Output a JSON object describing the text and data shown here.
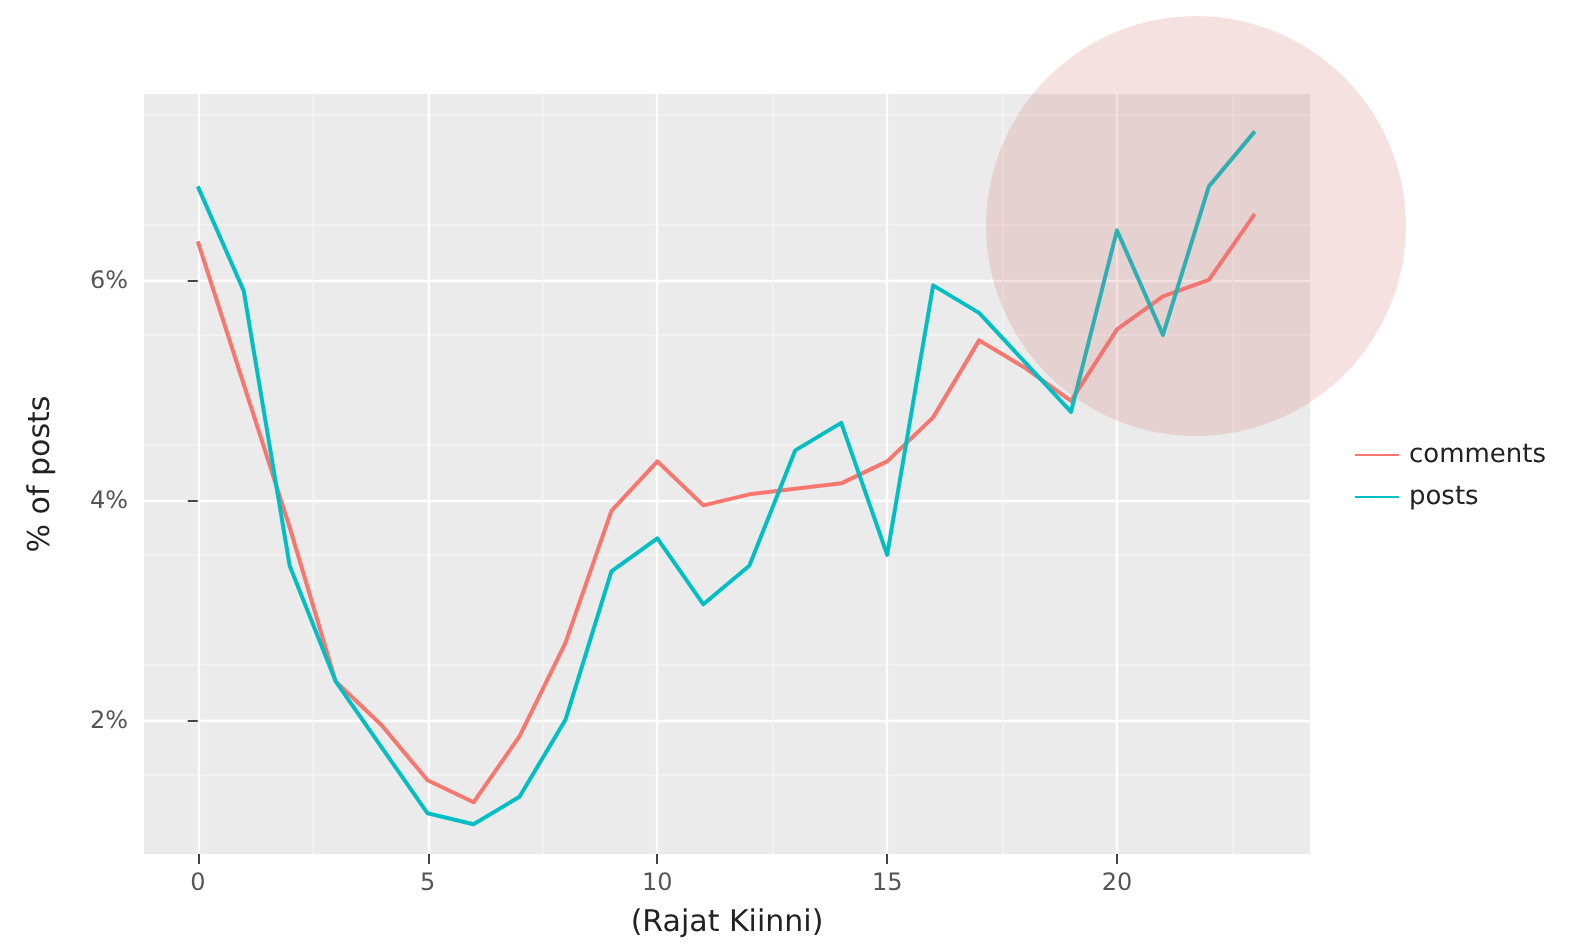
{
  "chart_data": {
    "type": "line",
    "xlabel": "(Rajat Kiinni)",
    "ylabel": "% of posts",
    "x": [
      0,
      1,
      2,
      3,
      4,
      5,
      6,
      7,
      8,
      9,
      10,
      11,
      12,
      13,
      14,
      15,
      16,
      17,
      18,
      19,
      20,
      21,
      22,
      23
    ],
    "series": [
      {
        "name": "comments",
        "color": "#f8766d",
        "values": [
          6.35,
          5.05,
          3.75,
          2.35,
          1.95,
          1.45,
          1.25,
          1.85,
          2.7,
          3.9,
          4.35,
          3.95,
          4.05,
          4.1,
          4.15,
          4.35,
          4.75,
          5.45,
          5.2,
          4.9,
          5.55,
          5.85,
          6.0,
          6.6
        ]
      },
      {
        "name": "posts",
        "color": "#00bfc4",
        "values": [
          6.85,
          5.9,
          3.4,
          2.35,
          1.75,
          1.15,
          1.05,
          1.3,
          2.0,
          3.35,
          3.65,
          3.05,
          3.4,
          4.45,
          4.7,
          3.5,
          5.95,
          5.7,
          5.25,
          4.8,
          6.45,
          5.5,
          6.85,
          7.35
        ]
      }
    ],
    "xlim": [
      -1.17,
      24.2
    ],
    "xticks": [
      0,
      5,
      10,
      15,
      20
    ],
    "ylim": [
      0.78,
      7.69
    ],
    "yticks": [
      {
        "value": 2,
        "label": "2%"
      },
      {
        "value": 4,
        "label": "4%"
      },
      {
        "value": 6,
        "label": "6%"
      }
    ],
    "grid": true,
    "legend": "right",
    "marker": "none",
    "line_style": "solid"
  }
}
